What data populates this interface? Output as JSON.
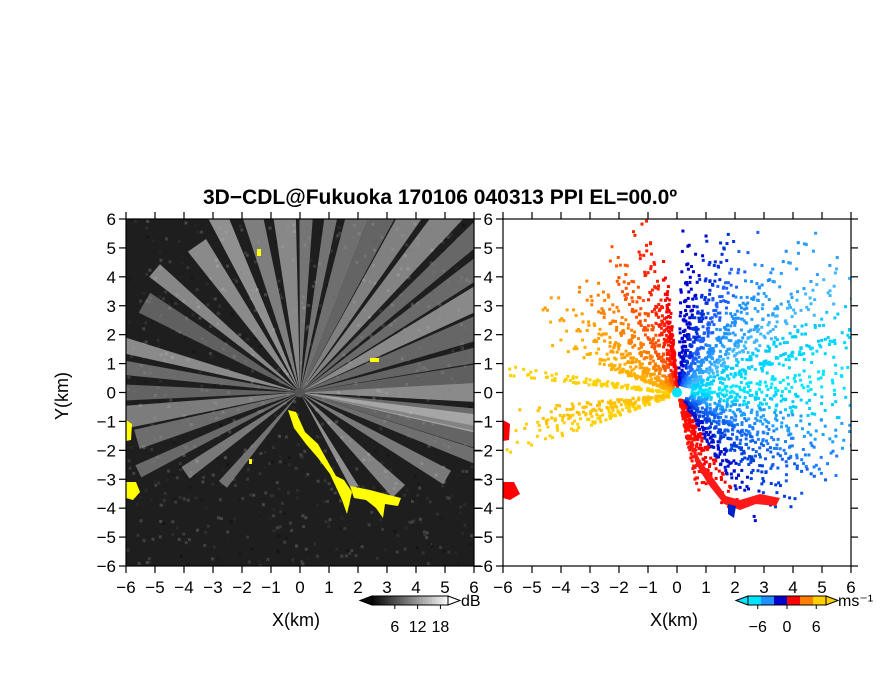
{
  "chart_data": [
    {
      "type": "heatmap",
      "title": "3D−CDL@Fukuoka 170106 040313 PPI EL=00.0º",
      "xlabel": "X(km)",
      "ylabel": "Y(km)",
      "xlim": [
        -6,
        6
      ],
      "ylim": [
        -6,
        6
      ],
      "xticks": [
        "−6",
        "−5",
        "−4",
        "−3",
        "−2",
        "−1",
        "0",
        "1",
        "2",
        "3",
        "4",
        "5",
        "6"
      ],
      "yticks": [
        "6",
        "5",
        "4",
        "3",
        "2",
        "1",
        "0",
        "−1",
        "−2",
        "−3",
        "−4",
        "−5",
        "−6"
      ],
      "background": "#1e1e1e",
      "colorbar": {
        "label": "dB",
        "ticks": [
          "6",
          "12",
          "18"
        ],
        "range": [
          0,
          20
        ]
      },
      "highlight_color": "#ffff00",
      "annotations": []
    },
    {
      "type": "heatmap",
      "xlabel": "X(km)",
      "xlim": [
        -6,
        6
      ],
      "ylim": [
        -6,
        6
      ],
      "xticks": [
        "−6",
        "−5",
        "−4",
        "−3",
        "−2",
        "−1",
        "0",
        "1",
        "2",
        "3",
        "4",
        "5",
        "6"
      ],
      "yticks": [
        "6",
        "5",
        "4",
        "3",
        "2",
        "1",
        "0",
        "−1",
        "−2",
        "−3",
        "−4",
        "−5",
        "−6"
      ],
      "background": "#ffffff",
      "colorbar": {
        "label": "ms⁻¹",
        "ticks": [
          "−6",
          "0",
          "6"
        ],
        "range": [
          -8,
          8
        ],
        "colors": [
          "#00e5ff",
          "#1e90ff",
          "#0000cc",
          "#ff0000",
          "#ff7f00",
          "#ffd000"
        ]
      }
    }
  ]
}
